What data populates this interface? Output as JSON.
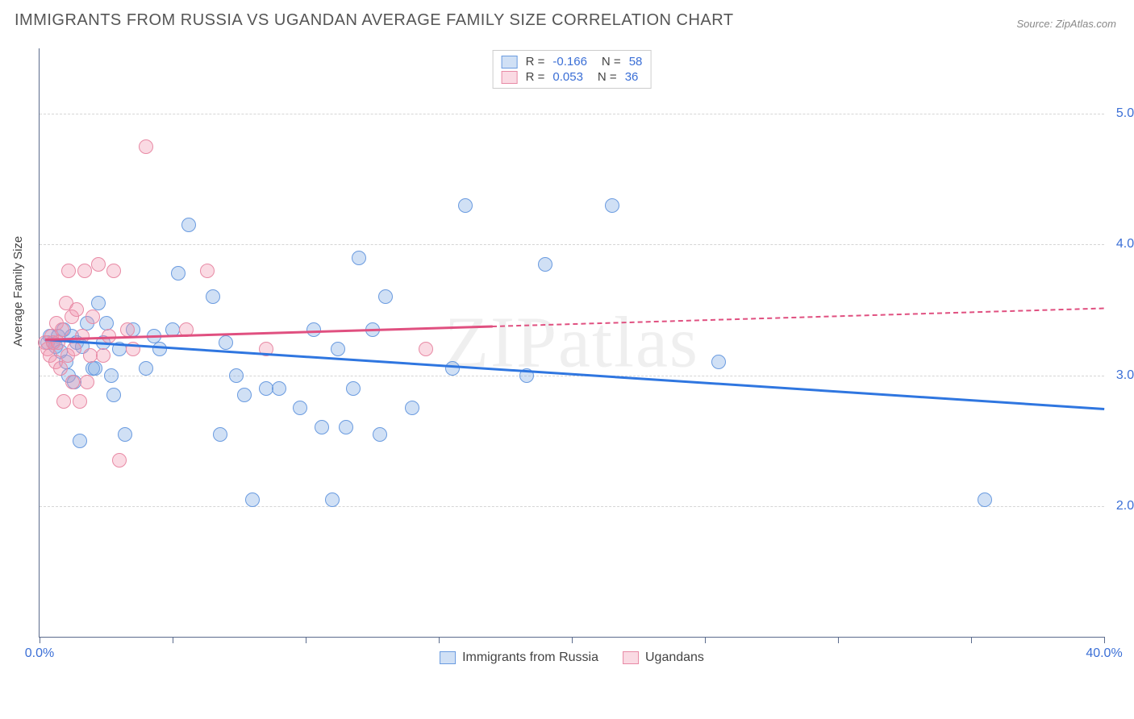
{
  "title": "IMMIGRANTS FROM RUSSIA VS UGANDAN AVERAGE FAMILY SIZE CORRELATION CHART",
  "source_prefix": "Source: ",
  "source_name": "ZipAtlas.com",
  "watermark": "ZIPatlas",
  "yaxis_title": "Average Family Size",
  "chart": {
    "type": "scatter",
    "xlim": [
      0,
      40
    ],
    "ylim": [
      1.0,
      5.5
    ],
    "x_tick_step": 5,
    "x_label_min": "0.0%",
    "x_label_max": "40.0%",
    "y_gridlines": [
      2.0,
      3.0,
      4.0,
      5.0
    ],
    "y_labels": [
      "2.00",
      "3.00",
      "4.00",
      "5.00"
    ],
    "background_color": "#ffffff",
    "grid_color": "#d5d5d5",
    "axis_color": "#5b6b8c",
    "tick_label_color": "#3b6fd6",
    "point_radius": 9,
    "series": [
      {
        "name": "Immigrants from Russia",
        "fill_color": "rgba(120,165,225,0.35)",
        "stroke_color": "#6a9be0",
        "line_color": "#2f76e0",
        "correlation_R": "-0.166",
        "correlation_N": "58",
        "trend": {
          "x1": 0.2,
          "y1": 3.28,
          "x2": 40.0,
          "y2": 2.75,
          "dash_after_x": null
        },
        "points": [
          [
            0.3,
            3.25
          ],
          [
            0.4,
            3.3
          ],
          [
            0.5,
            3.25
          ],
          [
            0.6,
            3.22
          ],
          [
            0.7,
            3.3
          ],
          [
            0.8,
            3.18
          ],
          [
            0.9,
            3.35
          ],
          [
            1.0,
            3.1
          ],
          [
            1.1,
            3.0
          ],
          [
            1.2,
            3.3
          ],
          [
            1.3,
            2.95
          ],
          [
            1.4,
            3.25
          ],
          [
            1.5,
            2.5
          ],
          [
            1.6,
            3.22
          ],
          [
            1.8,
            3.4
          ],
          [
            2.0,
            3.05
          ],
          [
            2.1,
            3.05
          ],
          [
            2.2,
            3.55
          ],
          [
            2.4,
            3.25
          ],
          [
            2.5,
            3.4
          ],
          [
            2.7,
            3.0
          ],
          [
            2.8,
            2.85
          ],
          [
            3.0,
            3.2
          ],
          [
            3.2,
            2.55
          ],
          [
            3.5,
            3.35
          ],
          [
            4.0,
            3.05
          ],
          [
            4.3,
            3.3
          ],
          [
            4.5,
            3.2
          ],
          [
            5.0,
            3.35
          ],
          [
            5.2,
            3.78
          ],
          [
            5.6,
            4.15
          ],
          [
            6.5,
            3.6
          ],
          [
            6.8,
            2.55
          ],
          [
            7.0,
            3.25
          ],
          [
            7.4,
            3.0
          ],
          [
            7.7,
            2.85
          ],
          [
            8.0,
            2.05
          ],
          [
            8.5,
            2.9
          ],
          [
            9.0,
            2.9
          ],
          [
            9.8,
            2.75
          ],
          [
            10.3,
            3.35
          ],
          [
            10.6,
            2.6
          ],
          [
            11.0,
            2.05
          ],
          [
            11.2,
            3.2
          ],
          [
            11.5,
            2.6
          ],
          [
            11.8,
            2.9
          ],
          [
            12.0,
            3.9
          ],
          [
            12.5,
            3.35
          ],
          [
            12.8,
            2.55
          ],
          [
            13.0,
            3.6
          ],
          [
            14.0,
            2.75
          ],
          [
            15.5,
            3.05
          ],
          [
            16.0,
            4.3
          ],
          [
            18.3,
            3.0
          ],
          [
            19.0,
            3.85
          ],
          [
            21.5,
            4.3
          ],
          [
            25.5,
            3.1
          ],
          [
            35.5,
            2.05
          ]
        ]
      },
      {
        "name": "Ugandans",
        "fill_color": "rgba(240,150,175,0.35)",
        "stroke_color": "#e88aa5",
        "line_color": "#e05080",
        "correlation_R": "0.053",
        "correlation_N": "36",
        "trend": {
          "x1": 0.2,
          "y1": 3.28,
          "x2": 40.0,
          "y2": 3.52,
          "dash_after_x": 17.0
        },
        "points": [
          [
            0.2,
            3.25
          ],
          [
            0.3,
            3.2
          ],
          [
            0.4,
            3.15
          ],
          [
            0.45,
            3.3
          ],
          [
            0.5,
            3.25
          ],
          [
            0.6,
            3.1
          ],
          [
            0.65,
            3.4
          ],
          [
            0.7,
            3.25
          ],
          [
            0.8,
            3.05
          ],
          [
            0.85,
            3.35
          ],
          [
            0.9,
            2.8
          ],
          [
            1.0,
            3.55
          ],
          [
            1.05,
            3.15
          ],
          [
            1.1,
            3.8
          ],
          [
            1.2,
            3.45
          ],
          [
            1.25,
            2.95
          ],
          [
            1.3,
            3.2
          ],
          [
            1.4,
            3.5
          ],
          [
            1.5,
            2.8
          ],
          [
            1.6,
            3.3
          ],
          [
            1.7,
            3.8
          ],
          [
            1.8,
            2.95
          ],
          [
            1.9,
            3.15
          ],
          [
            2.0,
            3.45
          ],
          [
            2.2,
            3.85
          ],
          [
            2.4,
            3.15
          ],
          [
            2.6,
            3.3
          ],
          [
            2.8,
            3.8
          ],
          [
            3.0,
            2.35
          ],
          [
            3.3,
            3.35
          ],
          [
            3.5,
            3.2
          ],
          [
            4.0,
            4.75
          ],
          [
            5.5,
            3.35
          ],
          [
            6.3,
            3.8
          ],
          [
            8.5,
            3.2
          ],
          [
            14.5,
            3.2
          ]
        ]
      }
    ],
    "legend_stats": {
      "R_label": "R =",
      "N_label": "N ="
    }
  }
}
